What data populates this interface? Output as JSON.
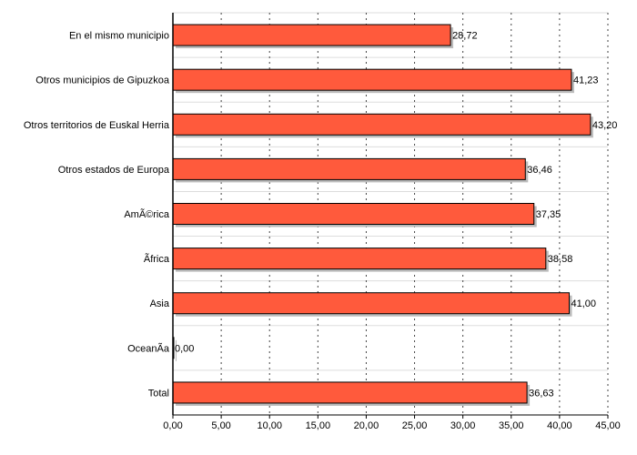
{
  "chart_data": {
    "type": "bar",
    "orientation": "horizontal",
    "categories": [
      "En el mismo municipio",
      "Otros municipios de Gipuzkoa",
      "Otros territorios de Euskal Herria",
      "Otros estados de Europa",
      "AmÃ©rica",
      "Ãfrica",
      "Asia",
      "OceanÃ­a",
      "Total"
    ],
    "values": [
      28.72,
      41.23,
      43.2,
      36.46,
      37.35,
      38.58,
      41.0,
      0.0,
      36.63
    ],
    "value_labels": [
      "28,72",
      "41,23",
      "43,20",
      "36,46",
      "37,35",
      "38,58",
      "41,00",
      "0,00",
      "36,63"
    ],
    "xlim": [
      0,
      45
    ],
    "x_ticks": [
      0,
      5,
      10,
      15,
      20,
      25,
      30,
      35,
      40,
      45
    ],
    "x_tick_labels": [
      "0,00",
      "5,00",
      "10,00",
      "15,00",
      "20,00",
      "25,00",
      "30,00",
      "35,00",
      "40,00",
      "45,00"
    ],
    "grid": "vertical-dotted",
    "bar_color": "#ff5a3c",
    "bar_border_color": "#000000",
    "shadow_color": "#bbbbbb",
    "title": "",
    "xlabel": "",
    "ylabel": ""
  }
}
